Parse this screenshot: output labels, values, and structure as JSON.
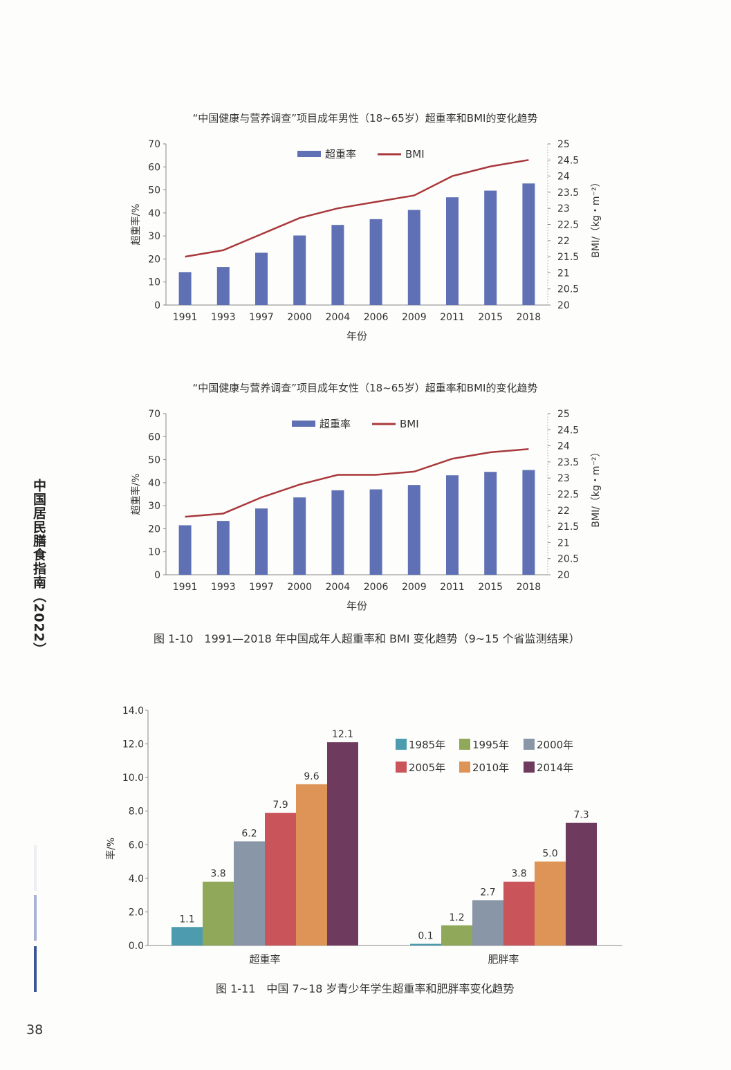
{
  "page": {
    "side_title": "中国居民膳食指南（2022）",
    "page_number": "38"
  },
  "figure_captions": {
    "fig_1_10": "图 1-10　1991—2018 年中国成年人超重率和 BMI 变化趋势（9~15 个省监测结果）",
    "fig_1_11": "图 1-11　中国 7~18 岁青少年学生超重率和肥胖率变化趋势"
  },
  "colors": {
    "bar_blue": "#5f71b4",
    "line_red": "#a8383c",
    "axis": "#888888",
    "c1985": "#4c9bae",
    "c1995": "#8fa85a",
    "c2000": "#8896a8",
    "c2005": "#c9545a",
    "c2010": "#de9457",
    "c2014": "#6e3a5d"
  },
  "chart_data": [
    {
      "type": "bar",
      "title": "“中国健康与营养调查”项目成年男性（18~65岁）超重率和BMI的变化趋势",
      "xlabel": "年份",
      "ylabel": "超重率/%",
      "y2label": "BMI/（kg・m⁻²）",
      "categories": [
        "1991",
        "1993",
        "1997",
        "2000",
        "2004",
        "2006",
        "2009",
        "2011",
        "2015",
        "2018"
      ],
      "series": [
        {
          "name": "超重率",
          "type": "bar",
          "axis": "left",
          "values": [
            14.3,
            16.5,
            22.7,
            30.2,
            34.8,
            37.3,
            41.3,
            46.8,
            49.7,
            52.8
          ]
        },
        {
          "name": "BMI",
          "type": "line",
          "axis": "right",
          "values": [
            21.5,
            21.7,
            22.2,
            22.7,
            23.0,
            23.2,
            23.4,
            24.0,
            24.3,
            24.5
          ]
        }
      ],
      "ylim": [
        0,
        70
      ],
      "yticks": [
        "0",
        "10",
        "20",
        "30",
        "40",
        "50",
        "60",
        "70"
      ],
      "y2lim": [
        20,
        25
      ],
      "y2ticks": [
        "20",
        "20.5",
        "21",
        "21.5",
        "22",
        "22.5",
        "23",
        "23.5",
        "24",
        "24.5",
        "25"
      ],
      "legend": "top-center",
      "grid": false
    },
    {
      "type": "bar",
      "title": "“中国健康与营养调查”项目成年女性（18~65岁）超重率和BMI的变化趋势",
      "xlabel": "年份",
      "ylabel": "超重率/%",
      "y2label": "BMI/（kg・m⁻²）",
      "categories": [
        "1991",
        "1993",
        "1997",
        "2000",
        "2004",
        "2006",
        "2009",
        "2011",
        "2015",
        "2018"
      ],
      "series": [
        {
          "name": "超重率",
          "type": "bar",
          "axis": "left",
          "values": [
            21.5,
            23.4,
            28.8,
            33.6,
            36.7,
            37.1,
            39.0,
            43.2,
            44.7,
            45.5
          ]
        },
        {
          "name": "BMI",
          "type": "line",
          "axis": "right",
          "values": [
            21.8,
            21.9,
            22.4,
            22.8,
            23.1,
            23.1,
            23.2,
            23.6,
            23.8,
            23.9
          ]
        }
      ],
      "ylim": [
        0,
        70
      ],
      "yticks": [
        "0",
        "10",
        "20",
        "30",
        "40",
        "50",
        "60",
        "70"
      ],
      "y2lim": [
        20,
        25
      ],
      "y2ticks": [
        "20",
        "20.5",
        "21",
        "21.5",
        "22",
        "22.5",
        "23",
        "23.5",
        "24",
        "24.5",
        "25"
      ],
      "legend": "top-center",
      "grid": false
    },
    {
      "type": "bar",
      "title": "",
      "xlabel": "",
      "ylabel": "率/%",
      "categories": [
        "超重率",
        "肥胖率"
      ],
      "series": [
        {
          "name": "1985年",
          "values": [
            1.1,
            0.1
          ],
          "labels": [
            "1.1",
            "0.1"
          ]
        },
        {
          "name": "1995年",
          "values": [
            3.8,
            1.2
          ],
          "labels": [
            "3.8",
            "1.2"
          ]
        },
        {
          "name": "2000年",
          "values": [
            6.2,
            2.7
          ],
          "labels": [
            "6.2",
            "2.7"
          ]
        },
        {
          "name": "2005年",
          "values": [
            7.9,
            3.8
          ],
          "labels": [
            "7.9",
            "3.8"
          ]
        },
        {
          "name": "2010年",
          "values": [
            9.6,
            5.0
          ],
          "labels": [
            "9.6",
            "5.0"
          ]
        },
        {
          "name": "2014年",
          "values": [
            12.1,
            7.3
          ],
          "labels": [
            "12.1",
            "7.3"
          ]
        }
      ],
      "ylim": [
        0,
        14
      ],
      "yticks": [
        "0.0",
        "2.0",
        "4.0",
        "6.0",
        "8.0",
        "10.0",
        "12.0",
        "14.0"
      ],
      "legend": "top-right",
      "grid": false
    }
  ]
}
